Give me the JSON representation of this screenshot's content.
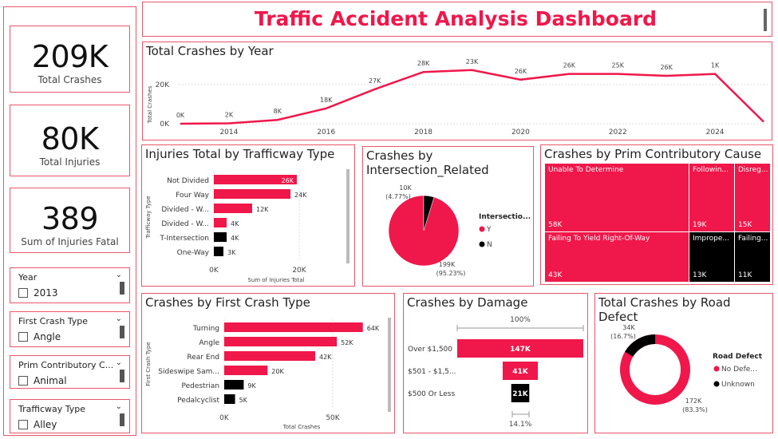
{
  "header": {
    "title": "Traffic Accident Analysis Dashboard"
  },
  "kpis": [
    {
      "value": "209K",
      "label": "Total Crashes"
    },
    {
      "value": "80K",
      "label": "Total Injuries"
    },
    {
      "value": "389",
      "label": "Sum of Injuries Fatal"
    }
  ],
  "slicers": [
    {
      "title": "Year",
      "option": "2013"
    },
    {
      "title": "First Crash Type",
      "option": "Angle"
    },
    {
      "title": "Prim Contributory C...",
      "option": "Animal"
    },
    {
      "title": "Trafficway Type",
      "option": "Alley"
    }
  ],
  "colors": {
    "accent": "#f0174a",
    "dark": "#000000",
    "border": "#e8566a",
    "title": "#f0174a"
  },
  "line_chart": {
    "title": "Total Crashes by Year",
    "ylabel": "Total Crashes",
    "y_ticks": [
      "0K",
      "20K"
    ],
    "x_ticks": [
      "2014",
      "2016",
      "2018",
      "2020",
      "2022",
      "2024"
    ],
    "labels": [
      "0K",
      "2K",
      "8K",
      "18K",
      "27K",
      "28K",
      "23K",
      "26K",
      "26K",
      "25K",
      "26K",
      "1K"
    ]
  },
  "injuries_chart": {
    "title": "Injuries Total by Trafficway Type",
    "ylabel": "Trafficway Type",
    "xlabel": "Sum of Injuries Total",
    "x_ticks": [
      "0K",
      "20K"
    ],
    "categories": [
      "Not Divided",
      "Four Way",
      "Divided - W...",
      "Divided - W...",
      "T-Intersection",
      "One-Way"
    ],
    "value_labels": [
      "26K",
      "24K",
      "12K",
      "4K",
      "4K",
      "3K"
    ]
  },
  "intersection_chart": {
    "title": "Crashes by Intersection_Related",
    "legend_title": "Intersectio...",
    "legend": [
      "Y",
      "N"
    ],
    "labels": {
      "small_value": "10K",
      "small_pct": "(4.77%)",
      "large_value": "199K",
      "large_pct": "(95.23%)"
    }
  },
  "treemap": {
    "title": "Crashes by Prim Contributory Cause",
    "cells": [
      {
        "label": "Unable To Determine",
        "value": "58K"
      },
      {
        "label": "Followin...",
        "value": "19K"
      },
      {
        "label": "Disreg...",
        "value": "15K"
      },
      {
        "label": "Failing To Yield Right-Of-Way",
        "value": "43K"
      },
      {
        "label": "Imprope...",
        "value": "13K"
      },
      {
        "label": "Failing...",
        "value": "11K"
      }
    ]
  },
  "first_crash_chart": {
    "title": "Crashes by First Crash Type",
    "ylabel": "First Crash Type",
    "xlabel": "Total Crashes",
    "x_ticks": [
      "0K",
      "50K"
    ],
    "categories": [
      "Turning",
      "Angle",
      "Rear End",
      "Sideswipe Sam...",
      "Pedestrian",
      "Pedalcyclist"
    ],
    "value_labels": [
      "64K",
      "52K",
      "42K",
      "20K",
      "9K",
      "5K"
    ]
  },
  "damage_chart": {
    "title": "Crashes by Damage",
    "top_label": "100%",
    "bottom_label": "14.1%",
    "categories": [
      "Over $1,500",
      "$501 - $1,5...",
      "$500 Or Less"
    ],
    "value_labels": [
      "147K",
      "41K",
      "21K"
    ]
  },
  "road_defect_chart": {
    "title": "Total Crashes by Road Defect",
    "legend_title": "Road Defect",
    "legend": [
      "No Defe...",
      "Unknown"
    ],
    "labels": {
      "small_value": "34K",
      "small_pct": "(16.7%)",
      "large_value": "172K",
      "large_pct": "(83.3%)"
    }
  },
  "chart_data": [
    {
      "type": "line",
      "title": "Total Crashes by Year",
      "ylabel": "Total Crashes",
      "x": [
        2013,
        2014,
        2015,
        2016,
        2017,
        2018,
        2019,
        2020,
        2021,
        2022,
        2023,
        2024,
        2025
      ],
      "values": [
        0.02,
        0.2,
        2,
        8,
        18,
        27,
        28,
        23,
        26,
        26,
        25,
        26,
        1
      ],
      "ylim": [
        0,
        30
      ]
    },
    {
      "type": "bar",
      "title": "Injuries Total by Trafficway Type",
      "xlabel": "Sum of Injuries Total",
      "ylabel": "Trafficway Type",
      "categories": [
        "Not Divided",
        "Four Way",
        "Divided - W...",
        "Divided - W...",
        "T-Intersection",
        "One-Way"
      ],
      "values": [
        26,
        24,
        12,
        4,
        4,
        3
      ],
      "xlim": [
        0,
        28
      ]
    },
    {
      "type": "pie",
      "title": "Crashes by Intersection_Related",
      "categories": [
        "Y",
        "N"
      ],
      "values": [
        199,
        10
      ],
      "percent": [
        95.23,
        4.77
      ]
    },
    {
      "type": "table",
      "title": "Crashes by Prim Contributory Cause",
      "categories": [
        "Unable To Determine",
        "Followin...",
        "Disreg...",
        "Failing To Yield Right-Of-Way",
        "Imprope...",
        "Failing..."
      ],
      "values": [
        58,
        19,
        15,
        43,
        13,
        11
      ]
    },
    {
      "type": "bar",
      "title": "Crashes by First Crash Type",
      "xlabel": "Total Crashes",
      "ylabel": "First Crash Type",
      "categories": [
        "Turning",
        "Angle",
        "Rear End",
        "Sideswipe Sam...",
        "Pedestrian",
        "Pedalcyclist"
      ],
      "values": [
        64,
        52,
        42,
        20,
        9,
        5
      ],
      "xlim": [
        0,
        70
      ]
    },
    {
      "type": "bar",
      "title": "Crashes by Damage",
      "categories": [
        "Over $1,500",
        "$501 - $1,5...",
        "$500 Or Less"
      ],
      "values": [
        147,
        41,
        21
      ]
    },
    {
      "type": "pie",
      "title": "Total Crashes by Road Defect",
      "categories": [
        "No Defe...",
        "Unknown"
      ],
      "values": [
        172,
        34
      ],
      "percent": [
        83.3,
        16.7
      ]
    }
  ]
}
